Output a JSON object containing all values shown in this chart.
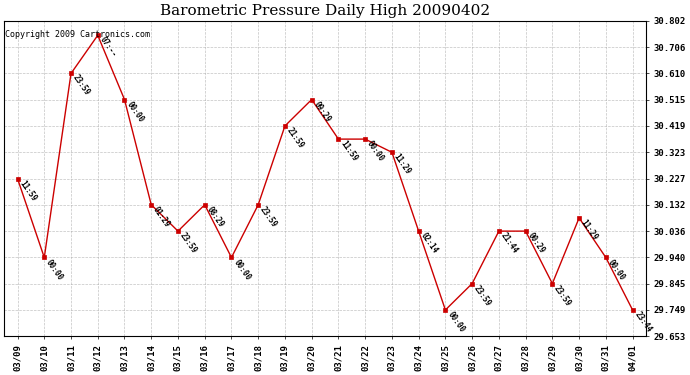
{
  "title": "Barometric Pressure Daily High 20090402",
  "copyright": "Copyright 2009 Cartronics.com",
  "x_labels": [
    "03/09",
    "03/10",
    "03/11",
    "03/12",
    "03/13",
    "03/14",
    "03/15",
    "03/16",
    "03/17",
    "03/18",
    "03/19",
    "03/20",
    "03/21",
    "03/22",
    "03/23",
    "03/24",
    "03/25",
    "03/26",
    "03/27",
    "03/28",
    "03/29",
    "03/30",
    "03/31",
    "04/01"
  ],
  "y_values": [
    30.227,
    29.94,
    30.61,
    30.749,
    30.515,
    30.132,
    30.036,
    30.132,
    29.94,
    30.132,
    30.419,
    30.515,
    30.371,
    30.371,
    30.323,
    30.036,
    29.749,
    29.845,
    30.036,
    30.036,
    29.845,
    30.084,
    29.94,
    29.749
  ],
  "time_labels": [
    "11:59",
    "00:00",
    "23:59",
    "07:--",
    "00:00",
    "01:29",
    "23:59",
    "08:29",
    "00:00",
    "23:59",
    "21:59",
    "09:29",
    "11:59",
    "00:00",
    "11:29",
    "02:14",
    "00:00",
    "23:59",
    "21:44",
    "00:29",
    "23:59",
    "11:29",
    "00:00",
    "23:44"
  ],
  "y_ticks": [
    29.653,
    29.749,
    29.845,
    29.94,
    30.036,
    30.132,
    30.227,
    30.323,
    30.419,
    30.515,
    30.61,
    30.706,
    30.802
  ],
  "ylim": [
    29.653,
    30.802
  ],
  "line_color": "#cc0000",
  "marker_color": "#cc0000",
  "background_color": "#ffffff",
  "grid_color": "#aaaaaa",
  "title_fontsize": 11,
  "copyright_fontsize": 6,
  "label_fontsize": 5.5,
  "tick_fontsize": 6.5
}
